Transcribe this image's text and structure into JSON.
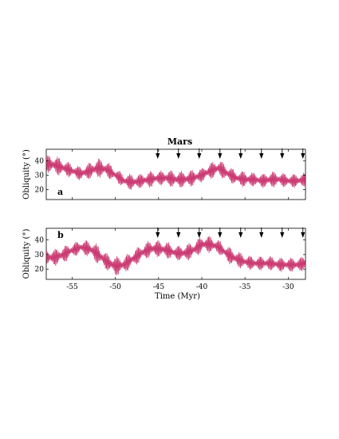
{
  "chart_data": {
    "type": "line",
    "title": "Mars",
    "xlabel": "Time (Myr)",
    "x_ticks": [
      -55,
      -50,
      -45,
      -40,
      -35,
      -30
    ],
    "xlim": [
      -58,
      -28
    ],
    "arrow_times": [
      -45.1,
      -42.7,
      -40.3,
      -37.9,
      -35.5,
      -33.1,
      -30.7,
      -28.3
    ],
    "series_color": "#c2185b",
    "series_outline": "#8e1a4a",
    "panels": [
      {
        "label": "a",
        "ylabel": "Obliquity (°)",
        "y_ticks": [
          20,
          30,
          40
        ],
        "ylim": [
          13,
          48
        ],
        "envelope": {
          "x": [
            -58,
            -57,
            -56,
            -55,
            -54,
            -53,
            -52,
            -51,
            -50,
            -49,
            -48,
            -47,
            -46,
            -45,
            -44,
            -43,
            -42,
            -41,
            -40,
            -39,
            -38,
            -37,
            -36,
            -35,
            -34,
            -33,
            -32,
            -31,
            -30,
            -29,
            -28
          ],
          "center": [
            38,
            37,
            35,
            33,
            31,
            33,
            35,
            34,
            30,
            26,
            25,
            26,
            27,
            28,
            28,
            27,
            27,
            28,
            30,
            33,
            35,
            31,
            28,
            27,
            27,
            26,
            27,
            27,
            26,
            26,
            27
          ],
          "halfwidth": [
            6,
            7,
            6,
            5,
            5,
            6,
            7,
            6,
            5,
            5,
            6,
            5,
            6,
            5,
            6,
            6,
            6,
            6,
            5,
            6,
            6,
            6,
            5,
            6,
            5,
            5,
            6,
            5,
            5,
            5,
            5
          ]
        }
      },
      {
        "label": "b",
        "ylabel": "Obliquity (°)",
        "y_ticks": [
          20,
          30,
          40
        ],
        "ylim": [
          13,
          48
        ],
        "envelope": {
          "x": [
            -58,
            -57,
            -56,
            -55,
            -54,
            -53,
            -52,
            -51,
            -50,
            -49,
            -48,
            -47,
            -46,
            -45,
            -44,
            -43,
            -42,
            -41,
            -40,
            -39,
            -38,
            -37,
            -36,
            -35,
            -34,
            -33,
            -32,
            -31,
            -30,
            -29,
            -28
          ],
          "center": [
            28,
            28,
            30,
            33,
            35,
            34,
            30,
            25,
            22,
            23,
            27,
            31,
            34,
            34,
            33,
            31,
            31,
            33,
            37,
            37,
            35,
            30,
            27,
            25,
            24,
            24,
            24,
            23,
            23,
            23,
            24
          ],
          "halfwidth": [
            6,
            6,
            6,
            5,
            5,
            6,
            7,
            6,
            7,
            6,
            6,
            6,
            6,
            6,
            6,
            5,
            6,
            6,
            6,
            6,
            5,
            6,
            6,
            5,
            5,
            5,
            5,
            5,
            5,
            5,
            5
          ]
        }
      }
    ]
  }
}
